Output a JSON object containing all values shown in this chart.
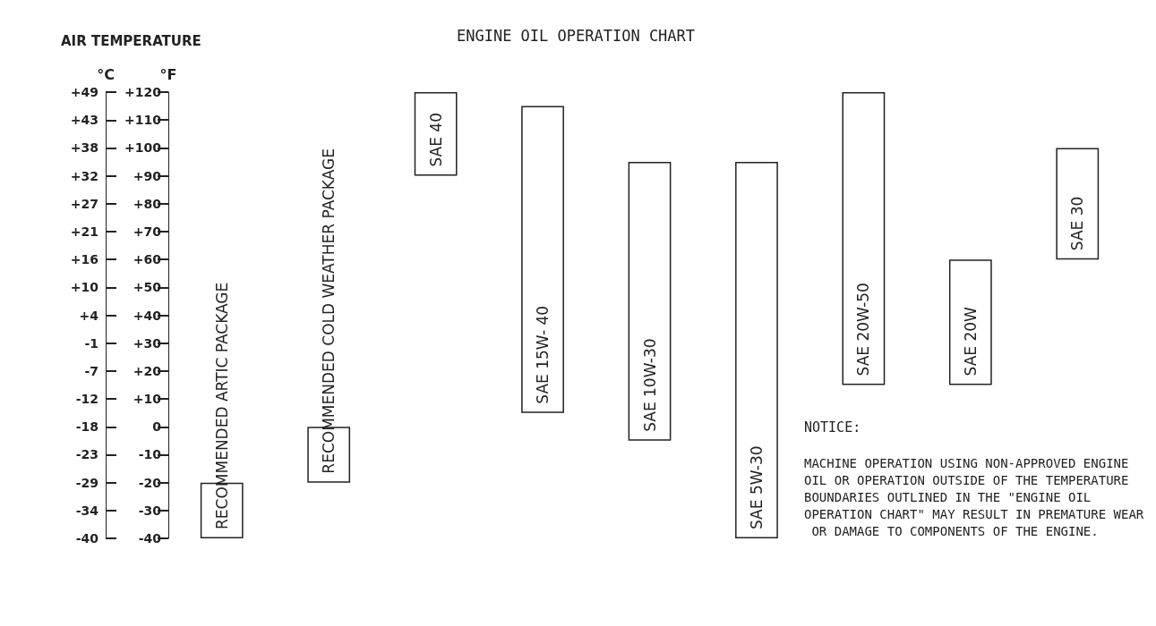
{
  "chart_data": {
    "type": "bar",
    "title": "ENGINE OIL OPERATION CHART",
    "categories": [
      "RECOMMENDED ARTIC PACKAGE",
      "RECOMMENDED COLD WEATHER PACKAGE",
      "SAE 40",
      "SAE 15W- 40",
      "SAE 10W-30",
      "SAE 5W-30",
      "SAE 20W-50",
      "SAE 20W",
      "SAE 30"
    ],
    "base": [
      -40,
      -20,
      90,
      5,
      -5,
      -40,
      15,
      15,
      60
    ],
    "values": [
      20,
      20,
      30,
      110,
      100,
      135,
      105,
      45,
      40
    ],
    "color": "#ffffff",
    "ylabel": "°F",
    "y2label": "°C",
    "ylim": [
      -40,
      120
    ],
    "yticks": [
      -40,
      -30,
      -20,
      -10,
      0,
      {
        "value": 10,
        "label": "+10"
      },
      {
        "value": 20,
        "label": "+20"
      },
      {
        "value": 30,
        "label": "+30"
      },
      {
        "value": 40,
        "label": "+40"
      },
      {
        "value": 50,
        "label": "+50"
      },
      {
        "value": 60,
        "label": "+60"
      },
      {
        "value": 70,
        "label": "+70"
      },
      {
        "value": 80,
        "label": "+80"
      },
      {
        "value": 90,
        "label": "+90"
      },
      {
        "value": 100,
        "label": "+100"
      },
      {
        "value": 110,
        "label": "+110"
      },
      {
        "value": 120,
        "label": "+120"
      }
    ],
    "y2lim": [
      -40,
      48.9
    ],
    "y2ticks": [
      -40,
      {
        "value": -34.4,
        "label": "-34"
      },
      {
        "value": -28.9,
        "label": "-29"
      },
      {
        "value": -23.3,
        "label": "-23"
      },
      {
        "value": -17.8,
        "label": "-18"
      },
      {
        "value": -12.2,
        "label": "-12"
      },
      {
        "value": -6.7,
        "label": "-7"
      },
      {
        "value": -1.1,
        "label": "-1"
      },
      {
        "value": 4.4,
        "label": "+4"
      },
      {
        "value": 10,
        "label": "+10"
      },
      {
        "value": 15.6,
        "label": "+16"
      },
      {
        "value": 21.1,
        "label": "+21"
      },
      {
        "value": 26.7,
        "label": "+27"
      },
      {
        "value": 32.2,
        "label": "+32"
      },
      {
        "value": 37.8,
        "label": "+38"
      },
      {
        "value": 43.3,
        "label": "+43"
      },
      {
        "value": 48.9,
        "label": "+49"
      }
    ],
    "annotations": [
      "AIR TEMPERATURE",
      "NOTICE:",
      "MACHINE OPERATION USING NON-APPROVED ENGINE OIL OR OPERATION OUTSIDE OF THE TEMPERATURE BOUNDARIES OUTLINED IN THE \"ENGINE OIL  OPERATION CHART\" MAY RESULT IN PREMATURE WEAR OR DAMAGE TO COMPONENTS OF THE ENGINE."
    ],
    "tick_labels": "y",
    "grid": false
  }
}
